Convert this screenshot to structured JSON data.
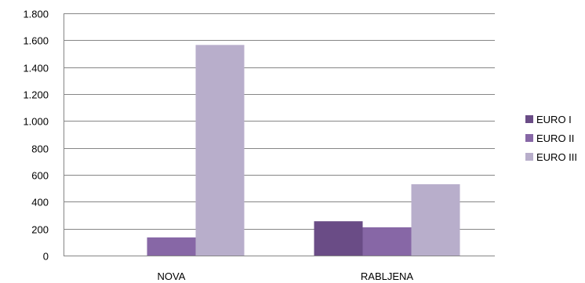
{
  "chart_data": {
    "type": "bar",
    "title": "",
    "xlabel": "",
    "ylabel": "",
    "categories": [
      "NOVA",
      "RABLJENA"
    ],
    "series": [
      {
        "name": "EURO I",
        "values": [
          0,
          255
        ],
        "color": "#6a4c86"
      },
      {
        "name": "EURO II",
        "values": [
          135,
          210
        ],
        "color": "#8767a6"
      },
      {
        "name": "EURO III",
        "values": [
          1565,
          530
        ],
        "color": "#b8aecb"
      }
    ],
    "ylim": [
      0,
      1800
    ],
    "yticks": [
      0,
      200,
      400,
      600,
      800,
      1000,
      1200,
      1400,
      1600,
      1800
    ],
    "ytick_labels": [
      "0",
      "200",
      "400",
      "600",
      "800",
      "1.000",
      "1.200",
      "1.400",
      "1.600",
      "1.800"
    ],
    "grid": "horizontal",
    "legend_position": "right"
  }
}
